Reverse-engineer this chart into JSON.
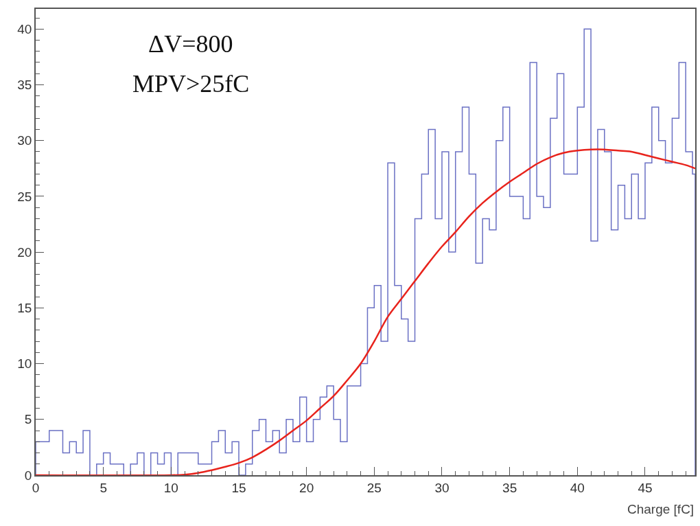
{
  "chart_data": {
    "type": "histogram",
    "bins": [
      0,
      0.5,
      1,
      1.5,
      2,
      2.5,
      3,
      3.5,
      4,
      4.5,
      5,
      5.5,
      6,
      6.5,
      7,
      7.5,
      8,
      8.5,
      9,
      9.5,
      10,
      10.5,
      11,
      11.5,
      12,
      12.5,
      13,
      13.5,
      14,
      14.5,
      15,
      15.5,
      16,
      16.5,
      17,
      17.5,
      18,
      18.5,
      19,
      19.5,
      20,
      20.5,
      21,
      21.5,
      22,
      22.5,
      23,
      23.5,
      24,
      24.5,
      25,
      25.5,
      26,
      26.5,
      27,
      27.5,
      28,
      28.5,
      29,
      29.5,
      30,
      30.5,
      31,
      31.5,
      32,
      32.5,
      33,
      33.5,
      34,
      34.5,
      35,
      35.5,
      36,
      36.5,
      37,
      37.5,
      38,
      38.5,
      39,
      39.5,
      40,
      40.5,
      41,
      41.5,
      42,
      42.5,
      43,
      43.5,
      44,
      44.5,
      45,
      45.5,
      46,
      46.5,
      47,
      47.5,
      48,
      48.5,
      48.7
    ],
    "values": [
      3,
      3,
      4,
      4,
      2,
      3,
      2,
      4,
      0,
      1,
      2,
      1,
      1,
      0,
      1,
      2,
      0,
      2,
      1,
      2,
      0,
      2,
      2,
      2,
      1,
      1,
      3,
      4,
      2,
      3,
      0,
      1,
      4,
      5,
      3,
      4,
      2,
      5,
      3,
      7,
      3,
      5,
      7,
      8,
      5,
      3,
      8,
      8,
      10,
      15,
      17,
      12,
      28,
      17,
      14,
      12,
      23,
      27,
      31,
      23,
      29,
      20,
      29,
      33,
      27,
      19,
      23,
      22,
      30,
      33,
      25,
      25,
      23,
      37,
      25,
      24,
      32,
      36,
      27,
      27,
      33,
      40,
      21,
      31,
      29,
      22,
      26,
      23,
      27,
      23,
      28,
      33,
      30,
      28,
      32,
      37,
      29,
      27
    ],
    "color": "#6a70c4",
    "series": [
      {
        "type": "line",
        "color": "#e8231c",
        "x": [
          0,
          10,
          11,
          12,
          13,
          14,
          15,
          16,
          17,
          18,
          19,
          20,
          21,
          22,
          23,
          24,
          25,
          26,
          27,
          28,
          29,
          30,
          31,
          32,
          33,
          34,
          35,
          36,
          37,
          38,
          39,
          40,
          41,
          42,
          43,
          44,
          45,
          46,
          47,
          48,
          48.7
        ],
        "values": [
          0,
          0,
          0.05,
          0.2,
          0.45,
          0.75,
          1.1,
          1.6,
          2.3,
          3.1,
          4,
          4.9,
          6,
          7.1,
          8.5,
          10,
          12,
          14.2,
          15.8,
          17.4,
          19,
          20.5,
          21.8,
          23.2,
          24.4,
          25.4,
          26.3,
          27.1,
          27.9,
          28.5,
          28.9,
          29.1,
          29.2,
          29.2,
          29.1,
          29,
          28.7,
          28.4,
          28.1,
          27.8,
          27.5
        ]
      }
    ],
    "xlim": [
      0,
      48.7
    ],
    "ylim": [
      0,
      41.8
    ],
    "xticks": [
      0,
      5,
      10,
      15,
      20,
      25,
      30,
      35,
      40,
      45
    ],
    "yticks": [
      0,
      5,
      10,
      15,
      20,
      25,
      30,
      35,
      40
    ],
    "xlabel": "Charge [fC]",
    "annotations": [
      "ΔV=800",
      "MPV>25fC"
    ]
  }
}
